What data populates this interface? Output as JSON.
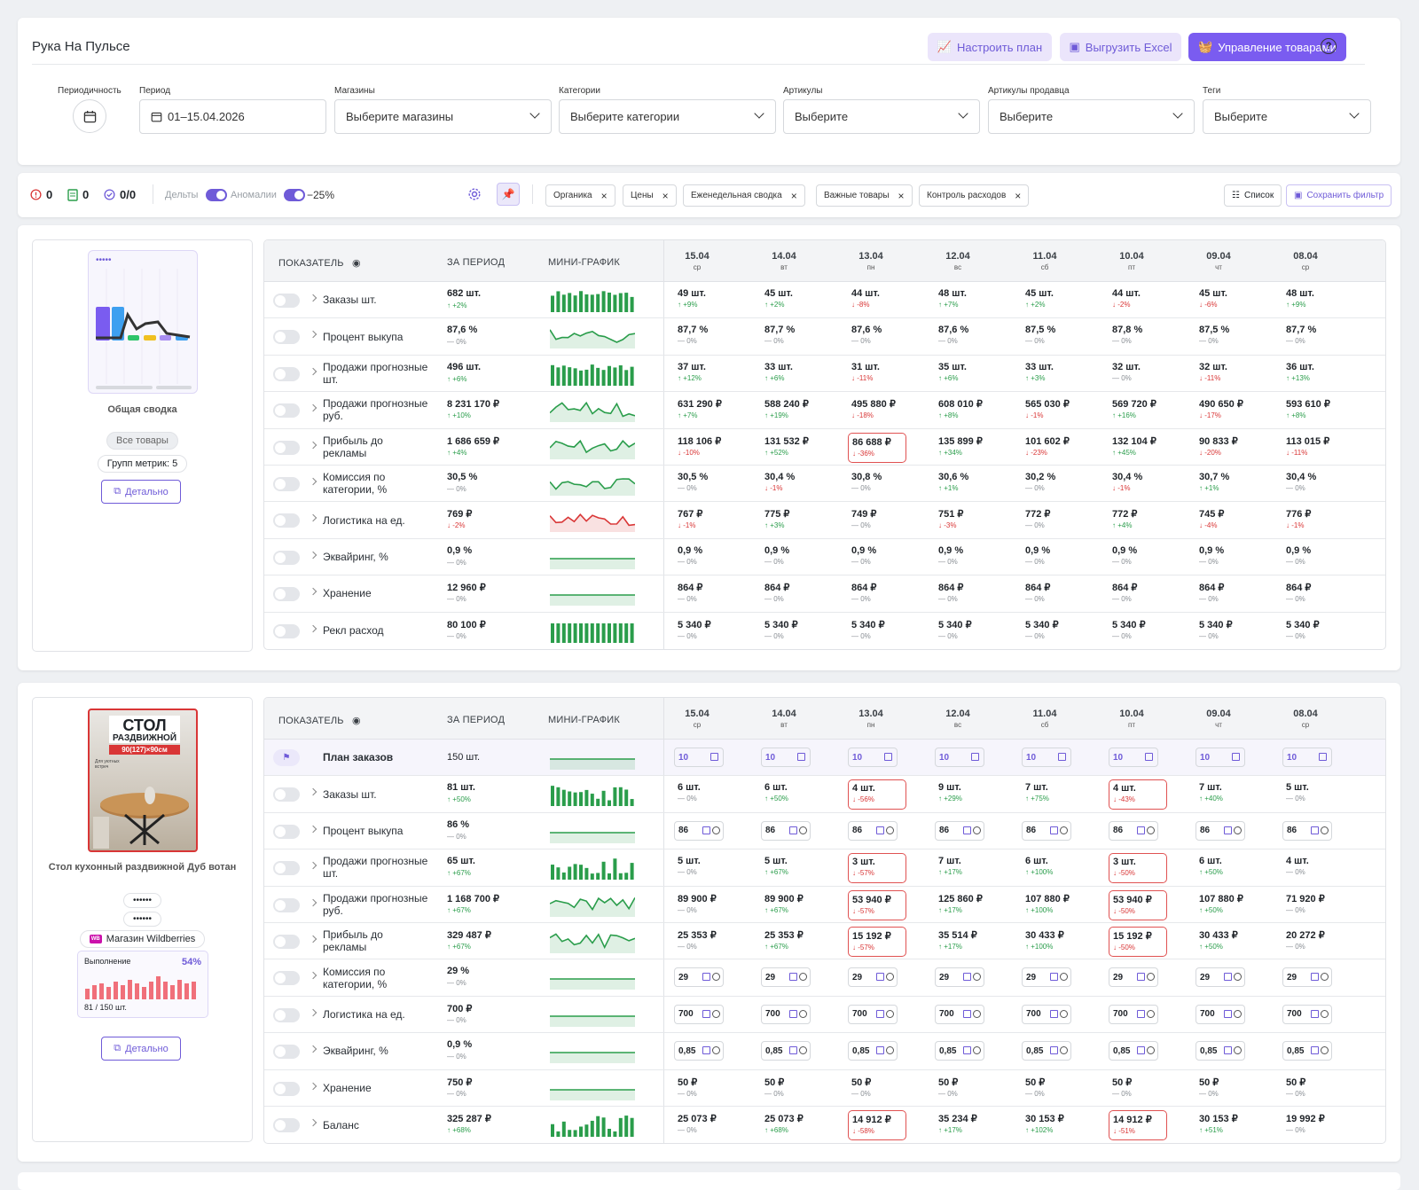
{
  "app": {
    "title": "Рука На Пульсе"
  },
  "header": {
    "btn_plan": "Настроить план",
    "btn_excel": "Выгрузить Excel",
    "btn_manage": "Управление товарами",
    "help": "?",
    "filters": {
      "periodicity_label": "Периодичность",
      "period_label": "Период",
      "period_value": "01–15.04.2026",
      "stores_label": "Магазины",
      "stores_placeholder": "Выберите магазины",
      "categories_label": "Категории",
      "categories_placeholder": "Выберите категории",
      "articles_label": "Артикулы",
      "articles_placeholder": "Выберите",
      "seller_articles_label": "Артикулы продавца",
      "seller_articles_placeholder": "Выберите",
      "tags_label": "Теги",
      "tags_placeholder": "Выберите"
    }
  },
  "toolbar": {
    "errors": "0",
    "docs": "0",
    "checks": "0/0",
    "deltas_label": "Дельты",
    "anomalies_label": "Аномалии",
    "threshold": "−25%",
    "chips": [
      "Органика",
      "Цены",
      "Еженедельная сводка",
      "Важные товары",
      "Контроль расходов"
    ],
    "list_btn": "Список",
    "save_filter_btn": "Сохранить фильтр"
  },
  "table_headers": {
    "indicator": "ПОКАЗАТЕЛЬ",
    "period": "ЗА ПЕРИОД",
    "mini": "МИНИ-ГРАФИК"
  },
  "dates": [
    {
      "d": "15.04",
      "w": "ср"
    },
    {
      "d": "14.04",
      "w": "вт"
    },
    {
      "d": "13.04",
      "w": "пн"
    },
    {
      "d": "12.04",
      "w": "вс"
    },
    {
      "d": "11.04",
      "w": "сб"
    },
    {
      "d": "10.04",
      "w": "пт"
    },
    {
      "d": "09.04",
      "w": "чт"
    },
    {
      "d": "08.04",
      "w": "ср"
    }
  ],
  "summary": {
    "title": "Общая сводка",
    "all_goods": "Все товары",
    "metric_groups": "Групп метрик: 5",
    "detail": "Детально",
    "rows": [
      {
        "name": "Заказы шт.",
        "total": "682 шт.",
        "delta": "↑ +2%",
        "dir": "up",
        "spark": "bars",
        "color": "#2a9d4b",
        "cells": [
          [
            "49 шт.",
            "↑ +9%",
            "up"
          ],
          [
            "45 шт.",
            "↑ +2%",
            "up"
          ],
          [
            "44 шт.",
            "↓ -8%",
            "dn"
          ],
          [
            "48 шт.",
            "↑ +7%",
            "up"
          ],
          [
            "45 шт.",
            "↑ +2%",
            "up"
          ],
          [
            "44 шт.",
            "↓ -2%",
            "dn"
          ],
          [
            "45 шт.",
            "↓ -6%",
            "dn"
          ],
          [
            "48 шт.",
            "↑ +9%",
            "up"
          ]
        ]
      },
      {
        "name": "Процент выкупа",
        "total": "87,6 %",
        "delta": "— 0%",
        "dir": "nt",
        "spark": "line",
        "color": "#2a9d4b",
        "cells": [
          [
            "87,7 %",
            "— 0%",
            "nt"
          ],
          [
            "87,7 %",
            "— 0%",
            "nt"
          ],
          [
            "87,6 %",
            "— 0%",
            "nt"
          ],
          [
            "87,6 %",
            "— 0%",
            "nt"
          ],
          [
            "87,5 %",
            "— 0%",
            "nt"
          ],
          [
            "87,8 %",
            "— 0%",
            "nt"
          ],
          [
            "87,5 %",
            "— 0%",
            "nt"
          ],
          [
            "87,7 %",
            "— 0%",
            "nt"
          ]
        ]
      },
      {
        "name": "Продажи прогнозные шт.",
        "total": "496 шт.",
        "delta": "↑ +6%",
        "dir": "up",
        "spark": "bars",
        "color": "#2a9d4b",
        "cells": [
          [
            "37 шт.",
            "↑ +12%",
            "up"
          ],
          [
            "33 шт.",
            "↑ +6%",
            "up"
          ],
          [
            "31 шт.",
            "↓ -11%",
            "dn"
          ],
          [
            "35 шт.",
            "↑ +6%",
            "up"
          ],
          [
            "33 шт.",
            "↑ +3%",
            "up"
          ],
          [
            "32 шт.",
            "— 0%",
            "nt"
          ],
          [
            "32 шт.",
            "↓ -11%",
            "dn"
          ],
          [
            "36 шт.",
            "↑ +13%",
            "up"
          ]
        ]
      },
      {
        "name": "Продажи прогнозные руб.",
        "total": "8 231 170 ₽",
        "delta": "↑ +10%",
        "dir": "up",
        "spark": "line",
        "color": "#2a9d4b",
        "cells": [
          [
            "631 290 ₽",
            "↑ +7%",
            "up"
          ],
          [
            "588 240 ₽",
            "↑ +19%",
            "up"
          ],
          [
            "495 880 ₽",
            "↓ -18%",
            "dn"
          ],
          [
            "608 010 ₽",
            "↑ +8%",
            "up"
          ],
          [
            "565 030 ₽",
            "↓ -1%",
            "dn"
          ],
          [
            "569 720 ₽",
            "↑ +16%",
            "up"
          ],
          [
            "490 650 ₽",
            "↓ -17%",
            "dn"
          ],
          [
            "593 610 ₽",
            "↑ +8%",
            "up"
          ]
        ]
      },
      {
        "name": "Прибыль до рекламы",
        "total": "1 686 659 ₽",
        "delta": "↑ +4%",
        "dir": "up",
        "spark": "line",
        "color": "#2a9d4b",
        "cells": [
          [
            "118 106 ₽",
            "↓ -10%",
            "dn"
          ],
          [
            "131 532 ₽",
            "↑ +52%",
            "up"
          ],
          [
            "86 688 ₽",
            "↓ -36%",
            "dn",
            "alert"
          ],
          [
            "135 899 ₽",
            "↑ +34%",
            "up"
          ],
          [
            "101 602 ₽",
            "↓ -23%",
            "dn"
          ],
          [
            "132 104 ₽",
            "↑ +45%",
            "up"
          ],
          [
            "90 833 ₽",
            "↓ -20%",
            "dn"
          ],
          [
            "113 015 ₽",
            "↓ -11%",
            "dn"
          ]
        ]
      },
      {
        "name": "Комиссия по категории, %",
        "total": "30,5 %",
        "delta": "— 0%",
        "dir": "nt",
        "spark": "line",
        "color": "#2a9d4b",
        "cells": [
          [
            "30,5 %",
            "— 0%",
            "nt"
          ],
          [
            "30,4 %",
            "↓ -1%",
            "dn"
          ],
          [
            "30,8 %",
            "— 0%",
            "nt"
          ],
          [
            "30,6 %",
            "↑ +1%",
            "up"
          ],
          [
            "30,2 %",
            "— 0%",
            "nt"
          ],
          [
            "30,4 %",
            "↓ -1%",
            "dn"
          ],
          [
            "30,7 %",
            "↑ +1%",
            "up"
          ],
          [
            "30,4 %",
            "— 0%",
            "nt"
          ]
        ]
      },
      {
        "name": "Логистика на ед.",
        "total": "769 ₽",
        "delta": "↓ -2%",
        "dir": "dn",
        "spark": "line",
        "color": "#d93636",
        "cells": [
          [
            "767 ₽",
            "↓ -1%",
            "dn"
          ],
          [
            "775 ₽",
            "↑ +3%",
            "up"
          ],
          [
            "749 ₽",
            "— 0%",
            "nt"
          ],
          [
            "751 ₽",
            "↓ -3%",
            "dn"
          ],
          [
            "772 ₽",
            "— 0%",
            "nt"
          ],
          [
            "772 ₽",
            "↑ +4%",
            "up"
          ],
          [
            "745 ₽",
            "↓ -4%",
            "dn"
          ],
          [
            "776 ₽",
            "↓ -1%",
            "dn"
          ]
        ]
      },
      {
        "name": "Эквайринг, %",
        "total": "0,9 %",
        "delta": "— 0%",
        "dir": "nt",
        "spark": "flat",
        "color": "#2a9d4b",
        "cells": [
          [
            "0,9 %",
            "— 0%",
            "nt"
          ],
          [
            "0,9 %",
            "— 0%",
            "nt"
          ],
          [
            "0,9 %",
            "— 0%",
            "nt"
          ],
          [
            "0,9 %",
            "— 0%",
            "nt"
          ],
          [
            "0,9 %",
            "— 0%",
            "nt"
          ],
          [
            "0,9 %",
            "— 0%",
            "nt"
          ],
          [
            "0,9 %",
            "— 0%",
            "nt"
          ],
          [
            "0,9 %",
            "— 0%",
            "nt"
          ]
        ]
      },
      {
        "name": "Хранение",
        "total": "12 960 ₽",
        "delta": "— 0%",
        "dir": "nt",
        "spark": "flat",
        "color": "#2a9d4b",
        "cells": [
          [
            "864 ₽",
            "— 0%",
            "nt"
          ],
          [
            "864 ₽",
            "— 0%",
            "nt"
          ],
          [
            "864 ₽",
            "— 0%",
            "nt"
          ],
          [
            "864 ₽",
            "— 0%",
            "nt"
          ],
          [
            "864 ₽",
            "— 0%",
            "nt"
          ],
          [
            "864 ₽",
            "— 0%",
            "nt"
          ],
          [
            "864 ₽",
            "— 0%",
            "nt"
          ],
          [
            "864 ₽",
            "— 0%",
            "nt"
          ]
        ]
      },
      {
        "name": "Рекл расход",
        "total": "80 100 ₽",
        "delta": "— 0%",
        "dir": "nt",
        "spark": "barsflat",
        "color": "#2a9d4b",
        "cells": [
          [
            "5 340 ₽",
            "— 0%",
            "nt"
          ],
          [
            "5 340 ₽",
            "— 0%",
            "nt"
          ],
          [
            "5 340 ₽",
            "— 0%",
            "nt"
          ],
          [
            "5 340 ₽",
            "— 0%",
            "nt"
          ],
          [
            "5 340 ₽",
            "— 0%",
            "nt"
          ],
          [
            "5 340 ₽",
            "— 0%",
            "nt"
          ],
          [
            "5 340 ₽",
            "— 0%",
            "nt"
          ],
          [
            "5 340 ₽",
            "— 0%",
            "nt"
          ]
        ]
      }
    ]
  },
  "product": {
    "img_line1": "СТОЛ",
    "img_line2": "РАЗДВИЖНОЙ",
    "img_line3": "90(127)×90см",
    "img_small": "Для уютных\nвстреч",
    "title": "Стол кухонный раздвижной Дуб вотан",
    "masked1": "••••••",
    "masked2": "••••••",
    "store_badge": "WB",
    "store": "Магазин Wildberries",
    "progress_label": "Выполнение",
    "progress_pct": "54%",
    "progress_value": 0.54,
    "progress_text": "81 / 150 шт.",
    "detail": "Детально",
    "plan": {
      "name": "План заказов",
      "total": "150 шт.",
      "cell_values": [
        "10",
        "10",
        "10",
        "10",
        "10",
        "10",
        "10",
        "10"
      ]
    },
    "rows": [
      {
        "name": "Заказы шт.",
        "total": "81 шт.",
        "delta": "↑ +50%",
        "dir": "up",
        "spark": "bars2",
        "color": "#2a9d4b",
        "cells": [
          [
            "6 шт.",
            "— 0%",
            "nt"
          ],
          [
            "6 шт.",
            "↑ +50%",
            "up"
          ],
          [
            "4 шт.",
            "↓ -56%",
            "dn",
            "alert"
          ],
          [
            "9 шт.",
            "↑ +29%",
            "up"
          ],
          [
            "7 шт.",
            "↑ +75%",
            "up"
          ],
          [
            "4 шт.",
            "↓ -43%",
            "dn",
            "alert"
          ],
          [
            "7 шт.",
            "↑ +40%",
            "up"
          ],
          [
            "5 шт.",
            "— 0%",
            "nt"
          ]
        ]
      },
      {
        "name": "Процент выкупа",
        "total": "86 %",
        "delta": "— 0%",
        "dir": "nt",
        "spark": "flat",
        "color": "#2a9d4b",
        "inputs": [
          "86",
          "86",
          "86",
          "86",
          "86",
          "86",
          "86",
          "86"
        ]
      },
      {
        "name": "Продажи прогнозные шт.",
        "total": "65 шт.",
        "delta": "↑ +67%",
        "dir": "up",
        "spark": "bars2",
        "color": "#2a9d4b",
        "cells": [
          [
            "5 шт.",
            "— 0%",
            "nt"
          ],
          [
            "5 шт.",
            "↑ +67%",
            "up"
          ],
          [
            "3 шт.",
            "↓ -57%",
            "dn",
            "alert"
          ],
          [
            "7 шт.",
            "↑ +17%",
            "up"
          ],
          [
            "6 шт.",
            "↑ +100%",
            "up"
          ],
          [
            "3 шт.",
            "↓ -50%",
            "dn",
            "alert"
          ],
          [
            "6 шт.",
            "↑ +50%",
            "up"
          ],
          [
            "4 шт.",
            "— 0%",
            "nt"
          ]
        ]
      },
      {
        "name": "Продажи прогнозные руб.",
        "total": "1 168 700 ₽",
        "delta": "↑ +67%",
        "dir": "up",
        "spark": "line",
        "color": "#2a9d4b",
        "cells": [
          [
            "89 900 ₽",
            "— 0%",
            "nt"
          ],
          [
            "89 900 ₽",
            "↑ +67%",
            "up"
          ],
          [
            "53 940 ₽",
            "↓ -57%",
            "dn",
            "alert"
          ],
          [
            "125 860 ₽",
            "↑ +17%",
            "up"
          ],
          [
            "107 880 ₽",
            "↑ +100%",
            "up"
          ],
          [
            "53 940 ₽",
            "↓ -50%",
            "dn",
            "alert"
          ],
          [
            "107 880 ₽",
            "↑ +50%",
            "up"
          ],
          [
            "71 920 ₽",
            "— 0%",
            "nt"
          ]
        ]
      },
      {
        "name": "Прибыль до рекламы",
        "total": "329 487 ₽",
        "delta": "↑ +67%",
        "dir": "up",
        "spark": "line",
        "color": "#2a9d4b",
        "cells": [
          [
            "25 353 ₽",
            "— 0%",
            "nt"
          ],
          [
            "25 353 ₽",
            "↑ +67%",
            "up"
          ],
          [
            "15 192 ₽",
            "↓ -57%",
            "dn",
            "alert"
          ],
          [
            "35 514 ₽",
            "↑ +17%",
            "up"
          ],
          [
            "30 433 ₽",
            "↑ +100%",
            "up"
          ],
          [
            "15 192 ₽",
            "↓ -50%",
            "dn",
            "alert"
          ],
          [
            "30 433 ₽",
            "↑ +50%",
            "up"
          ],
          [
            "20 272 ₽",
            "— 0%",
            "nt"
          ]
        ]
      },
      {
        "name": "Комиссия по категории, %",
        "total": "29 %",
        "delta": "— 0%",
        "dir": "nt",
        "spark": "flat",
        "color": "#2a9d4b",
        "inputs": [
          "29",
          "29",
          "29",
          "29",
          "29",
          "29",
          "29",
          "29"
        ]
      },
      {
        "name": "Логистика на ед.",
        "total": "700 ₽",
        "delta": "— 0%",
        "dir": "nt",
        "spark": "flat",
        "color": "#2a9d4b",
        "inputs": [
          "700",
          "700",
          "700",
          "700",
          "700",
          "700",
          "700",
          "700"
        ]
      },
      {
        "name": "Эквайринг, %",
        "total": "0,9 %",
        "delta": "— 0%",
        "dir": "nt",
        "spark": "flat",
        "color": "#2a9d4b",
        "inputs": [
          "0,85",
          "0,85",
          "0,85",
          "0,85",
          "0,85",
          "0,85",
          "0,85",
          "0,85"
        ]
      },
      {
        "name": "Хранение",
        "total": "750 ₽",
        "delta": "— 0%",
        "dir": "nt",
        "spark": "flat",
        "color": "#2a9d4b",
        "cells": [
          [
            "50 ₽",
            "— 0%",
            "nt"
          ],
          [
            "50 ₽",
            "— 0%",
            "nt"
          ],
          [
            "50 ₽",
            "— 0%",
            "nt"
          ],
          [
            "50 ₽",
            "— 0%",
            "nt"
          ],
          [
            "50 ₽",
            "— 0%",
            "nt"
          ],
          [
            "50 ₽",
            "— 0%",
            "nt"
          ],
          [
            "50 ₽",
            "— 0%",
            "nt"
          ],
          [
            "50 ₽",
            "— 0%",
            "nt"
          ]
        ]
      },
      {
        "name": "Баланс",
        "total": "325 287 ₽",
        "delta": "↑ +68%",
        "dir": "up",
        "spark": "bars2",
        "color": "#2a9d4b",
        "cells": [
          [
            "25 073 ₽",
            "— 0%",
            "nt"
          ],
          [
            "25 073 ₽",
            "↑ +68%",
            "up"
          ],
          [
            "14 912 ₽",
            "↓ -58%",
            "dn",
            "alert"
          ],
          [
            "35 234 ₽",
            "↑ +17%",
            "up"
          ],
          [
            "30 153 ₽",
            "↑ +102%",
            "up"
          ],
          [
            "14 912 ₽",
            "↓ -51%",
            "dn",
            "alert"
          ],
          [
            "30 153 ₽",
            "↑ +51%",
            "up"
          ],
          [
            "19 992 ₽",
            "— 0%",
            "nt"
          ]
        ]
      }
    ]
  }
}
